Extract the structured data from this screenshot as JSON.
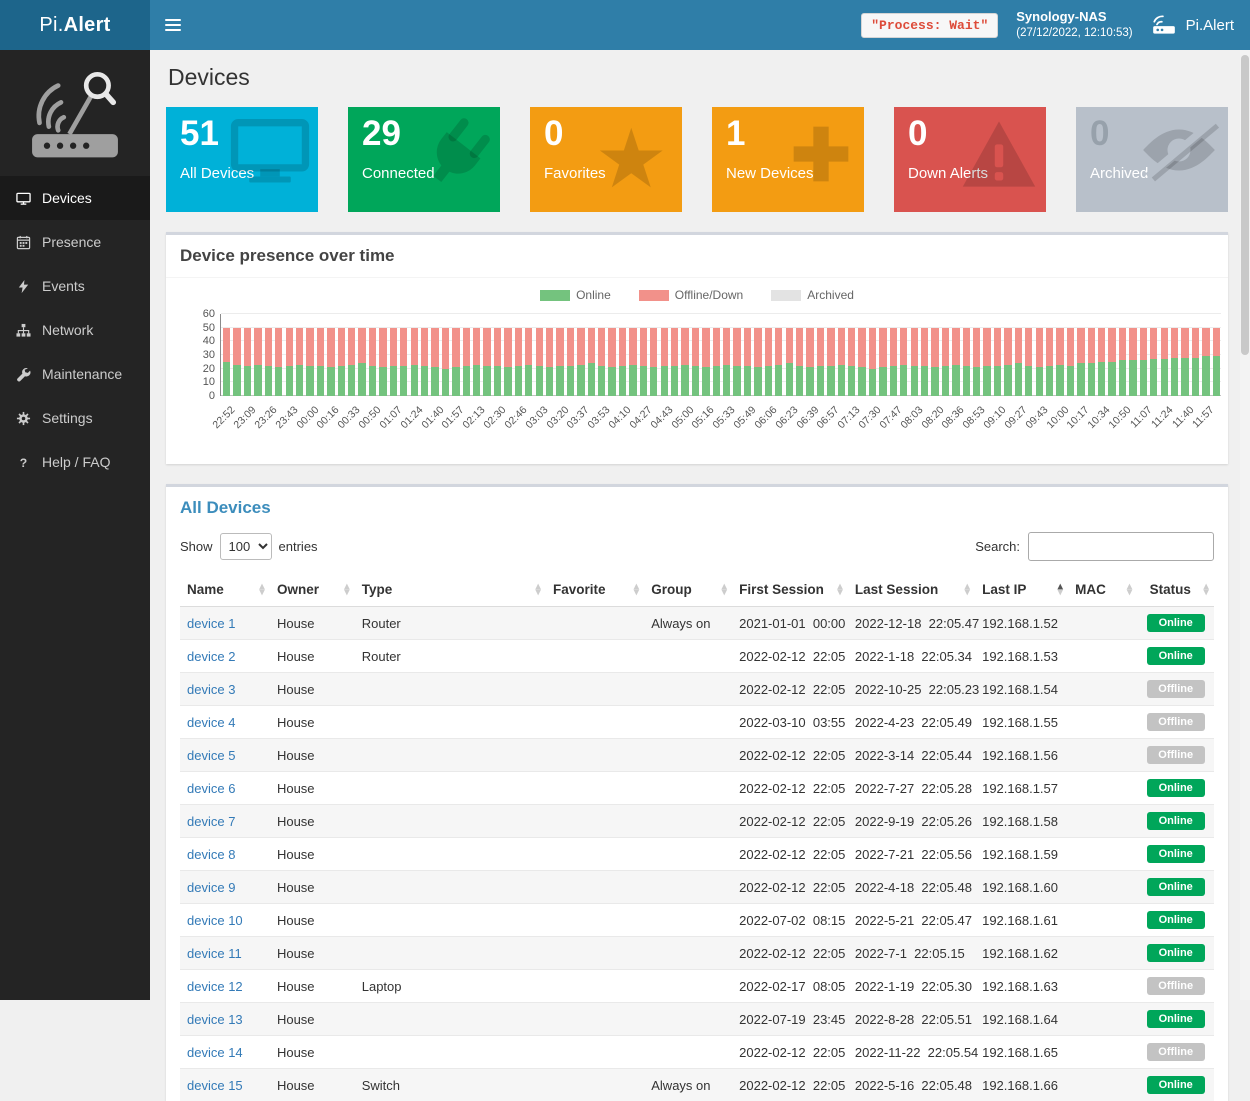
{
  "header": {
    "logo_prefix": "Pi.",
    "logo_suffix": "Alert",
    "process_status": "\"Process: Wait\"",
    "nas_name": "Synology-NAS",
    "nas_time": "(27/12/2022, 12:10:53)",
    "brand": "Pi.Alert",
    "navbar_color": "#2f7ea8",
    "logo_bg_color": "#1d658b"
  },
  "sidebar": {
    "items": [
      {
        "label": "Devices",
        "icon": "desktop",
        "active": true
      },
      {
        "label": "Presence",
        "icon": "calendar",
        "active": false
      },
      {
        "label": "Events",
        "icon": "bolt",
        "active": false
      },
      {
        "label": "Network",
        "icon": "network",
        "active": false
      },
      {
        "label": "Maintenance",
        "icon": "wrench",
        "active": false
      },
      {
        "label": "Settings",
        "icon": "gear",
        "active": false
      },
      {
        "label": "Help / FAQ",
        "icon": "question",
        "active": false
      }
    ]
  },
  "page": {
    "title": "Devices"
  },
  "cards": [
    {
      "value": "51",
      "label": "All Devices",
      "color": "#00b1d8",
      "icon": "monitor"
    },
    {
      "value": "29",
      "label": "Connected",
      "color": "#00a65a",
      "icon": "plug"
    },
    {
      "value": "0",
      "label": "Favorites",
      "color": "#f39c12",
      "icon": "star"
    },
    {
      "value": "1",
      "label": "New Devices",
      "color": "#f39c12",
      "icon": "plus"
    },
    {
      "value": "0",
      "label": "Down Alerts",
      "color": "#d9534f",
      "icon": "warning"
    },
    {
      "value": "0",
      "label": "Archived",
      "color": "#b8c0ca",
      "icon": "eye-slash",
      "value_color": "#97a1ab"
    }
  ],
  "chart_data": {
    "type": "bar",
    "stacked": true,
    "title": "Device presence over time",
    "ylim": [
      0,
      60
    ],
    "yticks": [
      0,
      10,
      20,
      30,
      40,
      50,
      60
    ],
    "legend_position": "top",
    "x_labels": [
      "22:52",
      "23:09",
      "23:26",
      "23:43",
      "00:00",
      "00:16",
      "00:33",
      "00:50",
      "01:07",
      "01:24",
      "01:40",
      "01:57",
      "02:13",
      "02:30",
      "02:46",
      "03:03",
      "03:20",
      "03:37",
      "03:53",
      "04:10",
      "04:27",
      "04:43",
      "05:00",
      "05:16",
      "05:33",
      "05:49",
      "06:06",
      "06:23",
      "06:39",
      "06:57",
      "07:13",
      "07:30",
      "07:47",
      "08:03",
      "08:20",
      "08:36",
      "08:53",
      "09:10",
      "09:27",
      "09:43",
      "10:00",
      "10:17",
      "10:34",
      "10:50",
      "11:07",
      "11:24",
      "11:40",
      "11:57"
    ],
    "series": [
      {
        "name": "Online",
        "color": "#74c37e",
        "values": [
          25,
          23,
          22,
          23,
          22,
          21,
          22,
          23,
          22,
          22,
          21,
          22,
          23,
          24,
          22,
          21,
          22,
          22,
          23,
          22,
          21,
          20,
          21,
          22,
          23,
          22,
          22,
          21,
          22,
          23,
          22,
          21,
          22,
          22,
          23,
          24,
          22,
          21,
          22,
          23,
          22,
          21,
          22,
          22,
          23,
          22,
          21,
          22,
          23,
          22,
          22,
          21,
          22,
          23,
          24,
          22,
          21,
          22,
          22,
          23,
          22,
          21,
          20,
          21,
          22,
          23,
          22,
          22,
          21,
          22,
          23,
          22,
          21,
          22,
          22,
          23,
          24,
          22,
          21,
          22,
          23,
          22,
          24,
          24,
          25,
          25,
          26,
          26,
          26,
          27,
          27,
          28,
          28,
          28,
          29,
          29
        ]
      },
      {
        "name": "Offline/Down",
        "color": "#f2918a",
        "values": [
          25,
          27,
          28,
          27,
          28,
          29,
          28,
          27,
          28,
          28,
          29,
          28,
          27,
          26,
          28,
          29,
          28,
          28,
          27,
          28,
          29,
          30,
          29,
          28,
          27,
          28,
          28,
          29,
          28,
          27,
          28,
          29,
          28,
          28,
          27,
          26,
          28,
          29,
          28,
          27,
          28,
          29,
          28,
          28,
          27,
          28,
          29,
          28,
          27,
          28,
          28,
          29,
          28,
          27,
          26,
          28,
          29,
          28,
          28,
          27,
          28,
          29,
          30,
          29,
          28,
          27,
          28,
          28,
          29,
          28,
          27,
          28,
          29,
          28,
          28,
          27,
          26,
          28,
          29,
          28,
          27,
          28,
          26,
          26,
          25,
          25,
          24,
          24,
          24,
          23,
          23,
          22,
          22,
          22,
          21,
          21
        ]
      },
      {
        "name": "Archived",
        "color": "#e3e3e3",
        "values": [
          0,
          0,
          0,
          0,
          0,
          0,
          0,
          0,
          0,
          0,
          0,
          0,
          0,
          0,
          0,
          0,
          0,
          0,
          0,
          0,
          0,
          0,
          0,
          0,
          0,
          0,
          0,
          0,
          0,
          0,
          0,
          0,
          0,
          0,
          0,
          0,
          0,
          0,
          0,
          0,
          0,
          0,
          0,
          0,
          0,
          0,
          0,
          0,
          0,
          0,
          0,
          0,
          0,
          0,
          0,
          0,
          0,
          0,
          0,
          0,
          0,
          0,
          0,
          0,
          0,
          0,
          0,
          0,
          0,
          0,
          0,
          0,
          0,
          0,
          0,
          0,
          0,
          0,
          0,
          0,
          0,
          0,
          0,
          0,
          0,
          0,
          0,
          0,
          0,
          0,
          0,
          0,
          0,
          0,
          0,
          0
        ]
      }
    ]
  },
  "table": {
    "title": "All Devices",
    "show_label": "Show",
    "entries_value": "100",
    "entries_options": [
      "100"
    ],
    "entries_label": "entries",
    "search_label": "Search:",
    "search_value": "",
    "columns": [
      "Name",
      "Owner",
      "Type",
      "Favorite",
      "Group",
      "First Session",
      "Last Session",
      "Last IP",
      "MAC",
      "Status"
    ],
    "sorted_column": "Last IP",
    "status_colors": {
      "Online": "#00a65a",
      "Offline": "#c3c3c3"
    },
    "rows": [
      [
        "device 1",
        "House",
        "Router",
        "",
        "Always on",
        "2021-01-01  00:00",
        "2022-12-18  22:05.47",
        "192.168.1.52",
        "",
        "Online"
      ],
      [
        "device 2",
        "House",
        "Router",
        "",
        "",
        "2022-02-12  22:05",
        "2022-1-18  22:05.34",
        "192.168.1.53",
        "",
        "Online"
      ],
      [
        "device 3",
        "House",
        "",
        "",
        "",
        "2022-02-12  22:05",
        "2022-10-25  22:05.23",
        "192.168.1.54",
        "",
        "Offline"
      ],
      [
        "device 4",
        "House",
        "",
        "",
        "",
        "2022-03-10  03:55",
        "2022-4-23  22:05.49",
        "192.168.1.55",
        "",
        "Offline"
      ],
      [
        "device 5",
        "House",
        "",
        "",
        "",
        "2022-02-12  22:05",
        "2022-3-14  22:05.44",
        "192.168.1.56",
        "",
        "Offline"
      ],
      [
        "device 6",
        "House",
        "",
        "",
        "",
        "2022-02-12  22:05",
        "2022-7-27  22:05.28",
        "192.168.1.57",
        "",
        "Online"
      ],
      [
        "device 7",
        "House",
        "",
        "",
        "",
        "2022-02-12  22:05",
        "2022-9-19  22:05.26",
        "192.168.1.58",
        "",
        "Online"
      ],
      [
        "device 8",
        "House",
        "",
        "",
        "",
        "2022-02-12  22:05",
        "2022-7-21  22:05.56",
        "192.168.1.59",
        "",
        "Online"
      ],
      [
        "device 9",
        "House",
        "",
        "",
        "",
        "2022-02-12  22:05",
        "2022-4-18  22:05.48",
        "192.168.1.60",
        "",
        "Online"
      ],
      [
        "device 10",
        "House",
        "",
        "",
        "",
        "2022-07-02  08:15",
        "2022-5-21  22:05.47",
        "192.168.1.61",
        "",
        "Online"
      ],
      [
        "device 11",
        "House",
        "",
        "",
        "",
        "2022-02-12  22:05",
        "2022-7-1  22:05.15",
        "192.168.1.62",
        "",
        "Online"
      ],
      [
        "device 12",
        "House",
        "Laptop",
        "",
        "",
        "2022-02-17  08:05",
        "2022-1-19  22:05.30",
        "192.168.1.63",
        "",
        "Offline"
      ],
      [
        "device 13",
        "House",
        "",
        "",
        "",
        "2022-07-19  23:45",
        "2022-8-28  22:05.51",
        "192.168.1.64",
        "",
        "Online"
      ],
      [
        "device 14",
        "House",
        "",
        "",
        "",
        "2022-02-12  22:05",
        "2022-11-22  22:05.54",
        "192.168.1.65",
        "",
        "Offline"
      ],
      [
        "device 15",
        "House",
        "Switch",
        "",
        "Always on",
        "2022-02-12  22:05",
        "2022-5-16  22:05.48",
        "192.168.1.66",
        "",
        "Online"
      ]
    ]
  }
}
